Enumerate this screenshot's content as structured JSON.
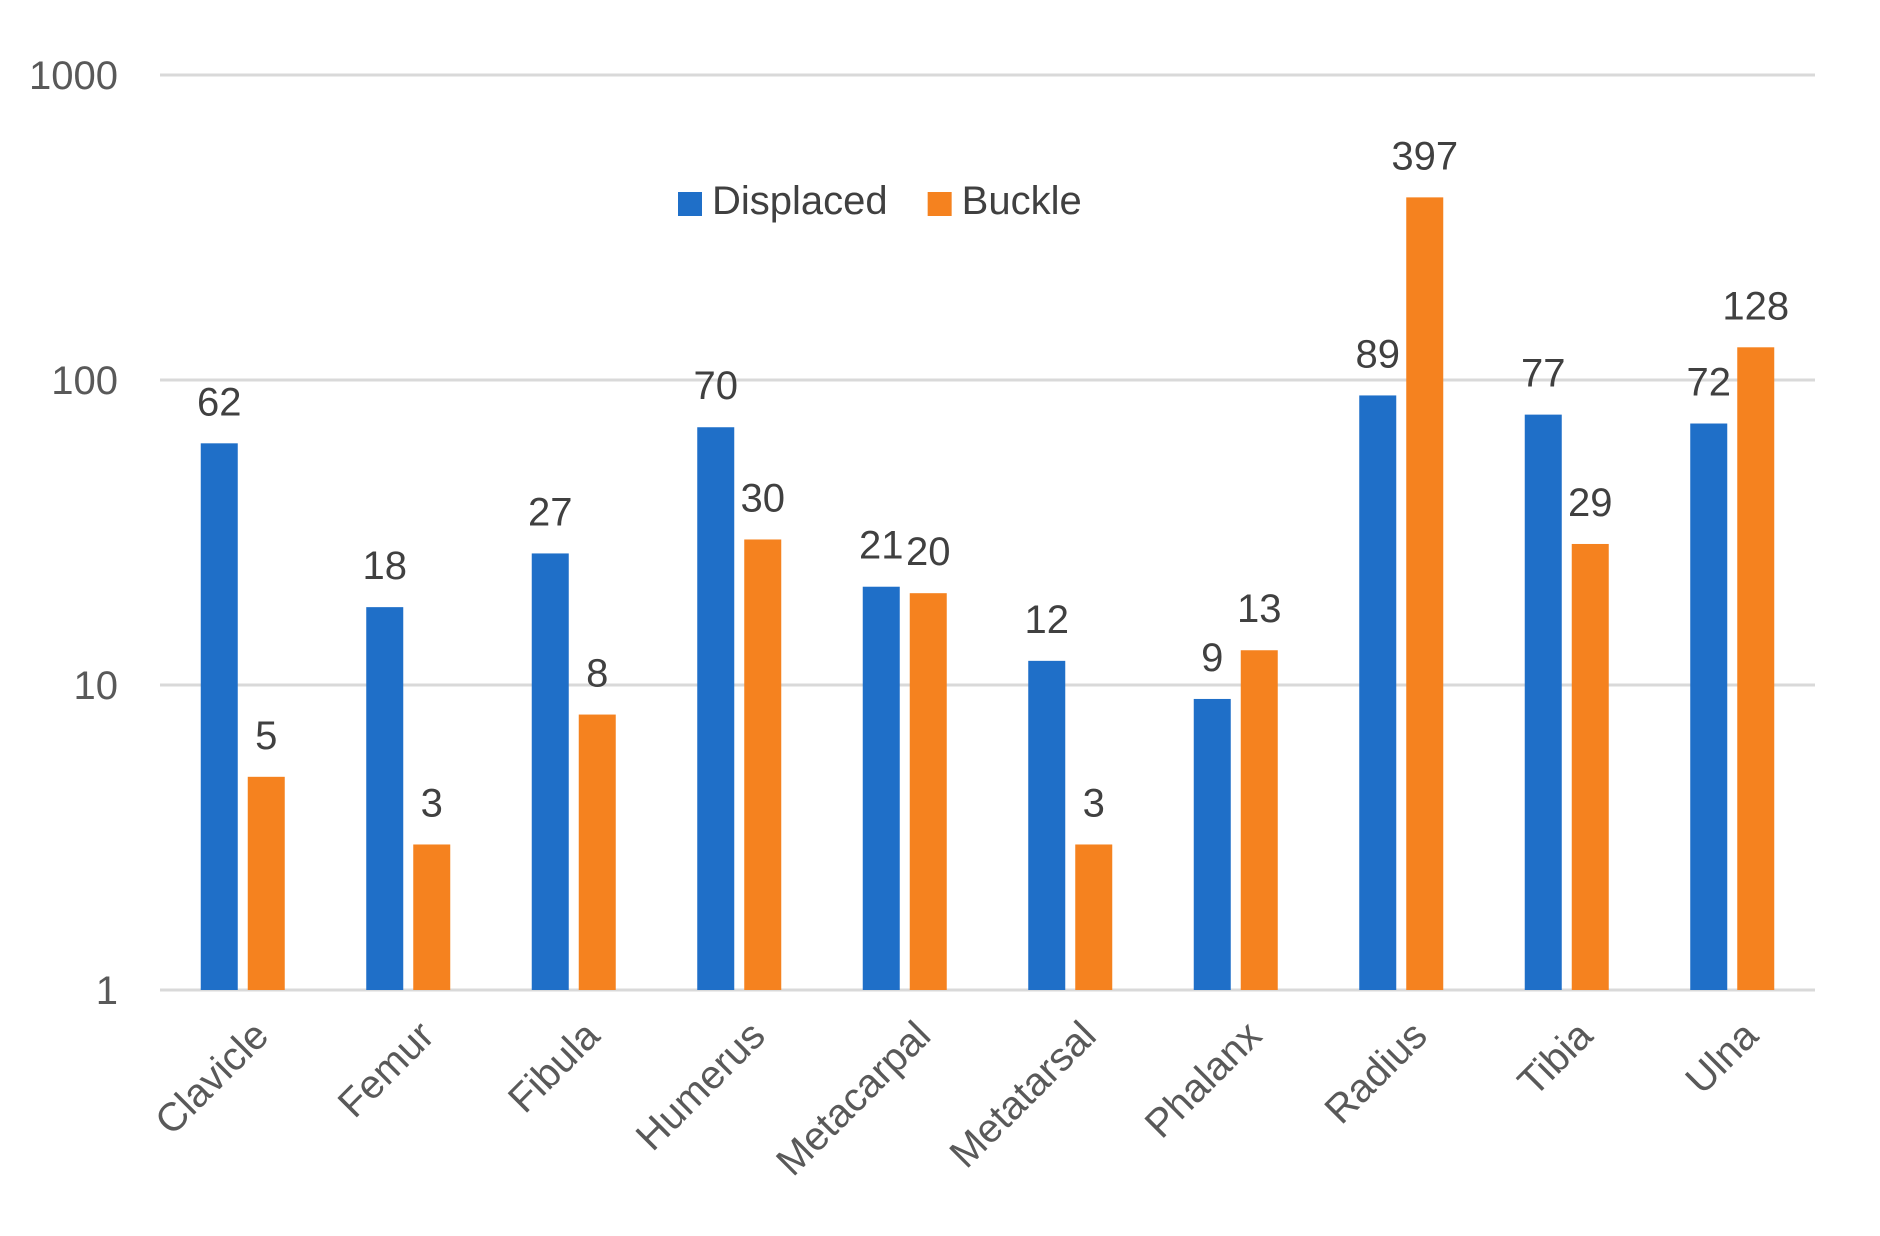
{
  "chart_data": {
    "type": "bar",
    "title": "",
    "xlabel": "",
    "ylabel": "",
    "yscale": "log",
    "ylim": [
      1,
      1000
    ],
    "yticks": [
      1,
      10,
      100,
      1000
    ],
    "ytick_labels": [
      "1",
      "10",
      "100",
      "1000"
    ],
    "grid": true,
    "legend_position": "top-center",
    "categories": [
      "Clavicle",
      "Femur",
      "Fibula",
      "Humerus",
      "Metacarpal",
      "Metatarsal",
      "Phalanx",
      "Radius",
      "Tibia",
      "Ulna"
    ],
    "series": [
      {
        "name": "Displaced",
        "color": "#1f6fc8",
        "values": [
          62,
          18,
          27,
          70,
          21,
          12,
          9,
          89,
          77,
          72
        ]
      },
      {
        "name": "Buckle",
        "color": "#f5821f",
        "values": [
          5,
          3,
          8,
          30,
          20,
          3,
          13,
          397,
          29,
          128
        ]
      }
    ]
  }
}
